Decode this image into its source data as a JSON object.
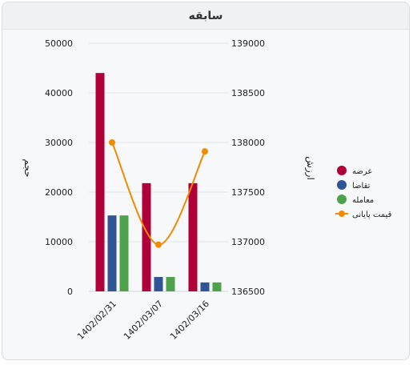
{
  "header": {
    "title": "سابقه"
  },
  "chart_data": {
    "type": "bar",
    "categories": [
      "1402/02/31",
      "1402/03/07",
      "1402/03/16"
    ],
    "ylabel_left": "حجم",
    "ylabel_right": "ارزش",
    "ylim_left": [
      0,
      50000
    ],
    "ylim_right": [
      136500,
      139000
    ],
    "yticks_left": [
      "0",
      "10000",
      "20000",
      "30000",
      "40000",
      "50000"
    ],
    "yticks_right": [
      "136500",
      "137000",
      "137500",
      "138000",
      "138500",
      "139000"
    ],
    "grid": true,
    "legend_position": "right",
    "series": [
      {
        "name": "عرضه",
        "type": "bar",
        "axis": "left",
        "color": "#b0003a",
        "values": [
          44000,
          21800,
          21800
        ]
      },
      {
        "name": "تقاضا",
        "type": "bar",
        "axis": "left",
        "color": "#2f5597",
        "values": [
          15300,
          2900,
          1800
        ]
      },
      {
        "name": "معامله",
        "type": "bar",
        "axis": "left",
        "color": "#4ea24c",
        "values": [
          15300,
          2900,
          1800
        ]
      },
      {
        "name": "قیمت پایانی",
        "type": "line",
        "axis": "right",
        "color": "#f08a00",
        "values": [
          138000,
          136970,
          137910
        ]
      }
    ]
  }
}
